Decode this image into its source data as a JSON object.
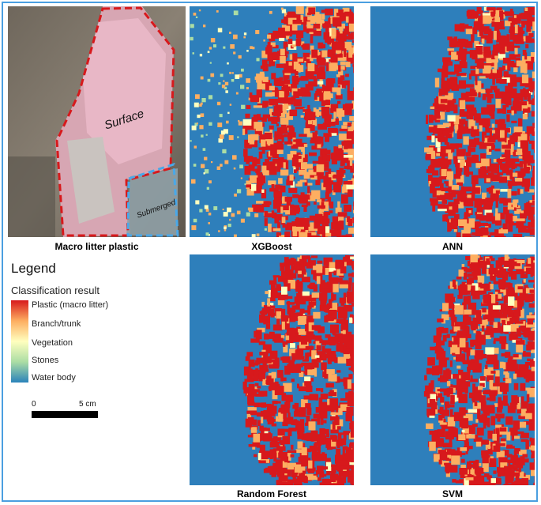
{
  "panels": {
    "photo": {
      "caption": "Macro litter plastic",
      "surface_label": "Surface",
      "submerged_label": "Submerged"
    },
    "xgboost": {
      "caption": "XGBoost"
    },
    "ann": {
      "caption": "ANN"
    },
    "random_forest": {
      "caption": "Random Forest"
    },
    "svm": {
      "caption": "SVM"
    }
  },
  "legend": {
    "title": "Legend",
    "subtitle": "Classification result",
    "classes": [
      {
        "label": "Plastic (macro litter)",
        "color": "#d7191c"
      },
      {
        "label": "Branch/trunk",
        "color": "#fdae61"
      },
      {
        "label": "Vegetation",
        "color": "#ffffbf"
      },
      {
        "label": "Stones",
        "color": "#abdda4"
      },
      {
        "label": "Water body",
        "color": "#2b83ba"
      }
    ]
  },
  "scale": {
    "start": "0",
    "end": "5 cm"
  },
  "colors": {
    "frame": "#4a9fe0",
    "water": "#2e7fbb",
    "plastic": "#d7191c",
    "branch": "#fdae61",
    "vegetation": "#ffffbf",
    "stones": "#abdda4"
  }
}
